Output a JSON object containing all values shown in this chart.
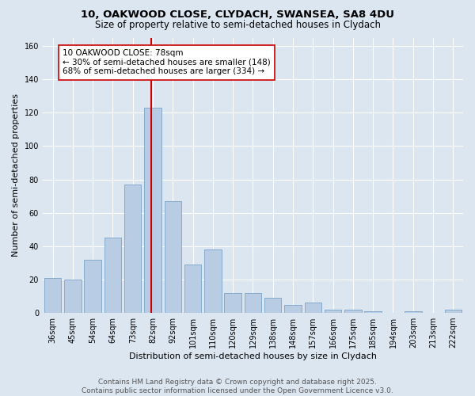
{
  "title_line1": "10, OAKWOOD CLOSE, CLYDACH, SWANSEA, SA8 4DU",
  "title_line2": "Size of property relative to semi-detached houses in Clydach",
  "xlabel": "Distribution of semi-detached houses by size in Clydach",
  "ylabel": "Number of semi-detached properties",
  "categories": [
    "36sqm",
    "45sqm",
    "54sqm",
    "64sqm",
    "73sqm",
    "82sqm",
    "92sqm",
    "101sqm",
    "110sqm",
    "120sqm",
    "129sqm",
    "138sqm",
    "148sqm",
    "157sqm",
    "166sqm",
    "175sqm",
    "185sqm",
    "194sqm",
    "203sqm",
    "213sqm",
    "222sqm"
  ],
  "values": [
    21,
    20,
    32,
    45,
    77,
    123,
    67,
    29,
    38,
    12,
    12,
    9,
    5,
    6,
    2,
    2,
    1,
    0,
    1,
    0,
    2
  ],
  "bar_color": "#b8cce4",
  "bar_edge_color": "#7aa3c8",
  "vline_color": "#cc0000",
  "annotation_text": "10 OAKWOOD CLOSE: 78sqm\n← 30% of semi-detached houses are smaller (148)\n68% of semi-detached houses are larger (334) →",
  "annotation_box_color": "#ffffff",
  "annotation_box_edge_color": "#cc0000",
  "ylim": [
    0,
    165
  ],
  "yticks": [
    0,
    20,
    40,
    60,
    80,
    100,
    120,
    140,
    160
  ],
  "background_color": "#dce6f1",
  "plot_background_color": "#dce6f1",
  "footer_text": "Contains HM Land Registry data © Crown copyright and database right 2025.\nContains public sector information licensed under the Open Government Licence v3.0.",
  "title_fontsize": 9.5,
  "subtitle_fontsize": 8.5,
  "axis_label_fontsize": 8,
  "tick_fontsize": 7,
  "annotation_fontsize": 7.5,
  "footer_fontsize": 6.5
}
